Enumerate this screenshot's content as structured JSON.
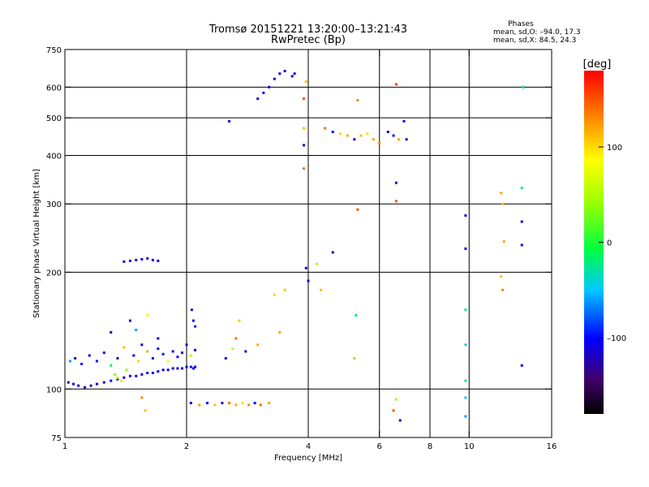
{
  "header": {
    "title": "Tromsø 20151221 13:20:00–13:21:43",
    "subtitle": "RwPretec (Bp)",
    "stats_title": "Phases",
    "stats_o": "mean, sd,O: –94.0, 17.3",
    "stats_x": "mean, sd,X:  84.5, 24.3"
  },
  "colorbar": {
    "label": "[deg]",
    "min": -180,
    "max": 180,
    "ticks": [
      {
        "value": 100,
        "label": "100"
      },
      {
        "value": 0,
        "label": "0"
      },
      {
        "value": -100,
        "label": "–100"
      }
    ]
  },
  "chart_data": {
    "type": "scatter",
    "title": "Tromsø 20151221 13:20:00–13:21:43",
    "subtitle": "RwPretec (Bp)",
    "xlabel": "Frequency [MHz]",
    "ylabel": "Stationary phase Virtual Height [km]",
    "x_scale": "log",
    "y_scale": "log",
    "xlim": [
      1,
      16
    ],
    "ylim": [
      75,
      750
    ],
    "x_ticks": [
      {
        "value": 1,
        "label": "1"
      },
      {
        "value": 2,
        "label": "2"
      },
      {
        "value": 4,
        "label": "4"
      },
      {
        "value": 6,
        "label": "6"
      },
      {
        "value": 8,
        "label": "8"
      },
      {
        "value": 10,
        "label": "10"
      },
      {
        "value": 16,
        "label": "16"
      }
    ],
    "y_ticks": [
      {
        "value": 75,
        "label": "75"
      },
      {
        "value": 100,
        "label": "100"
      },
      {
        "value": 200,
        "label": "200"
      },
      {
        "value": 300,
        "label": "300"
      },
      {
        "value": 400,
        "label": "400"
      },
      {
        "value": 500,
        "label": "500"
      },
      {
        "value": 600,
        "label": "600"
      },
      {
        "value": 750,
        "label": "750"
      }
    ],
    "grid_x": [
      2,
      4,
      6,
      8,
      10
    ],
    "grid_y": [
      100,
      200,
      300,
      400,
      500,
      600
    ],
    "color_scale": "phase [deg] rainbow, -180 to 180",
    "clusters": [
      {
        "region": "E-layer trace",
        "points": [
          [
            1.02,
            104,
            -120
          ],
          [
            1.05,
            103,
            -110
          ],
          [
            1.08,
            102,
            -115
          ],
          [
            1.12,
            101,
            -120
          ],
          [
            1.16,
            102,
            -118
          ],
          [
            1.2,
            103,
            -112
          ],
          [
            1.25,
            104,
            -110
          ],
          [
            1.3,
            105,
            -105
          ],
          [
            1.35,
            106,
            -100
          ],
          [
            1.4,
            107,
            -108
          ],
          [
            1.45,
            108,
            -112
          ],
          [
            1.5,
            108,
            -115
          ],
          [
            1.55,
            109,
            -110
          ],
          [
            1.6,
            110,
            -105
          ],
          [
            1.65,
            110,
            -108
          ],
          [
            1.7,
            111,
            -112
          ],
          [
            1.75,
            112,
            -110
          ],
          [
            1.8,
            112,
            -115
          ],
          [
            1.85,
            113,
            -110
          ],
          [
            1.9,
            113,
            -108
          ],
          [
            1.95,
            113,
            -112
          ],
          [
            2.0,
            114,
            -110
          ],
          [
            2.05,
            114,
            -115
          ],
          [
            2.08,
            113,
            -105
          ],
          [
            2.1,
            114,
            -100
          ]
        ]
      },
      {
        "region": "E-layer spread",
        "points": [
          [
            1.03,
            118,
            -60
          ],
          [
            1.06,
            120,
            -120
          ],
          [
            1.1,
            116,
            -100
          ],
          [
            1.15,
            122,
            -110
          ],
          [
            1.2,
            118,
            -95
          ],
          [
            1.25,
            124,
            -105
          ],
          [
            1.3,
            115,
            -20
          ],
          [
            1.35,
            120,
            -120
          ],
          [
            1.4,
            128,
            110
          ],
          [
            1.42,
            112,
            40
          ],
          [
            1.48,
            122,
            -100
          ],
          [
            1.52,
            118,
            100
          ],
          [
            1.55,
            130,
            -115
          ],
          [
            1.6,
            125,
            120
          ],
          [
            1.65,
            120,
            -105
          ],
          [
            1.7,
            127,
            -110
          ],
          [
            1.75,
            123,
            -95
          ],
          [
            1.8,
            118,
            80
          ],
          [
            1.85,
            125,
            -110
          ],
          [
            1.9,
            121,
            -100
          ],
          [
            1.95,
            124,
            -115
          ],
          [
            2.0,
            130,
            -108
          ],
          [
            2.05,
            122,
            60
          ],
          [
            2.1,
            126,
            -110
          ],
          [
            1.3,
            140,
            -115
          ],
          [
            1.45,
            150,
            -120
          ],
          [
            1.5,
            142,
            -60
          ],
          [
            1.6,
            155,
            90
          ],
          [
            1.7,
            135,
            -110
          ],
          [
            1.35,
            107,
            60
          ],
          [
            1.38,
            105,
            100
          ],
          [
            1.33,
            109,
            30
          ],
          [
            2.08,
            150,
            -110
          ],
          [
            2.06,
            160,
            -100
          ],
          [
            2.1,
            145,
            -90
          ]
        ]
      },
      {
        "region": "low echo 85-95 km",
        "points": [
          [
            1.55,
            95,
            130
          ],
          [
            1.58,
            88,
            110
          ],
          [
            2.05,
            92,
            -110
          ],
          [
            2.15,
            91,
            120
          ],
          [
            2.25,
            92,
            -100
          ],
          [
            2.35,
            91,
            110
          ],
          [
            2.45,
            92,
            -115
          ],
          [
            2.55,
            92,
            140
          ],
          [
            2.65,
            91,
            120
          ],
          [
            2.75,
            92,
            100
          ],
          [
            2.85,
            91,
            130
          ],
          [
            2.95,
            92,
            -100
          ],
          [
            3.05,
            91,
            140
          ],
          [
            3.2,
            92,
            120
          ],
          [
            6.5,
            88,
            150
          ],
          [
            6.6,
            94,
            40
          ],
          [
            6.75,
            83,
            -110
          ]
        ]
      },
      {
        "region": "mid band",
        "points": [
          [
            1.4,
            213,
            -110
          ],
          [
            1.45,
            214,
            -108
          ],
          [
            1.5,
            215,
            -112
          ],
          [
            1.55,
            216,
            -106
          ],
          [
            1.6,
            217,
            -110
          ],
          [
            1.65,
            215,
            -104
          ],
          [
            1.7,
            214,
            -112
          ],
          [
            2.5,
            120,
            -115
          ],
          [
            2.6,
            127,
            60
          ],
          [
            2.65,
            135,
            140
          ],
          [
            2.7,
            150,
            110
          ],
          [
            2.8,
            125,
            -100
          ],
          [
            3.0,
            130,
            120
          ],
          [
            3.3,
            175,
            100
          ],
          [
            3.5,
            180,
            110
          ],
          [
            3.4,
            140,
            120
          ],
          [
            3.9,
            370,
            140
          ],
          [
            3.95,
            205,
            -110
          ],
          [
            4.0,
            190,
            -100
          ],
          [
            4.2,
            210,
            100
          ],
          [
            4.3,
            180,
            110
          ],
          [
            4.6,
            225,
            -120
          ],
          [
            5.3,
            290,
            150
          ],
          [
            6.6,
            305,
            150
          ],
          [
            6.6,
            340,
            -110
          ],
          [
            5.2,
            120,
            110
          ],
          [
            5.25,
            155,
            -20
          ]
        ]
      },
      {
        "region": "F2 trace",
        "points": [
          [
            2.55,
            490,
            -110
          ],
          [
            3.0,
            560,
            -115
          ],
          [
            3.1,
            580,
            -108
          ],
          [
            3.2,
            600,
            -105
          ],
          [
            3.3,
            630,
            -110
          ],
          [
            3.4,
            650,
            -112
          ],
          [
            3.5,
            660,
            -118
          ],
          [
            3.65,
            640,
            -120
          ],
          [
            3.7,
            650,
            -100
          ],
          [
            3.95,
            620,
            110
          ],
          [
            3.9,
            560,
            150
          ],
          [
            3.9,
            470,
            110
          ],
          [
            3.9,
            425,
            -110
          ],
          [
            4.4,
            470,
            140
          ],
          [
            4.6,
            460,
            -100
          ],
          [
            4.8,
            455,
            100
          ],
          [
            5.0,
            450,
            120
          ],
          [
            5.2,
            440,
            -120
          ],
          [
            5.4,
            450,
            110
          ],
          [
            5.6,
            455,
            100
          ],
          [
            5.8,
            440,
            120
          ],
          [
            6.0,
            430,
            130
          ],
          [
            6.3,
            460,
            -115
          ],
          [
            6.5,
            450,
            -100
          ],
          [
            6.7,
            440,
            120
          ],
          [
            6.9,
            490,
            -110
          ],
          [
            7.0,
            440,
            -120
          ],
          [
            5.3,
            555,
            130
          ],
          [
            6.6,
            610,
            160
          ]
        ]
      },
      {
        "region": "high band",
        "points": [
          [
            9.8,
            280,
            -110
          ],
          [
            9.8,
            230,
            -115
          ],
          [
            9.8,
            160,
            -20
          ],
          [
            9.8,
            130,
            -40
          ],
          [
            9.8,
            105,
            -30
          ],
          [
            9.8,
            95,
            -50
          ],
          [
            9.8,
            85,
            -60
          ],
          [
            12.0,
            320,
            120
          ],
          [
            12.1,
            300,
            110
          ],
          [
            12.2,
            240,
            120
          ],
          [
            12.0,
            195,
            110
          ],
          [
            12.1,
            180,
            130
          ],
          [
            13.5,
            330,
            -20
          ],
          [
            13.5,
            270,
            -110
          ],
          [
            13.5,
            235,
            -105
          ],
          [
            13.5,
            115,
            -100
          ],
          [
            13.6,
            600,
            -30
          ]
        ]
      }
    ]
  }
}
